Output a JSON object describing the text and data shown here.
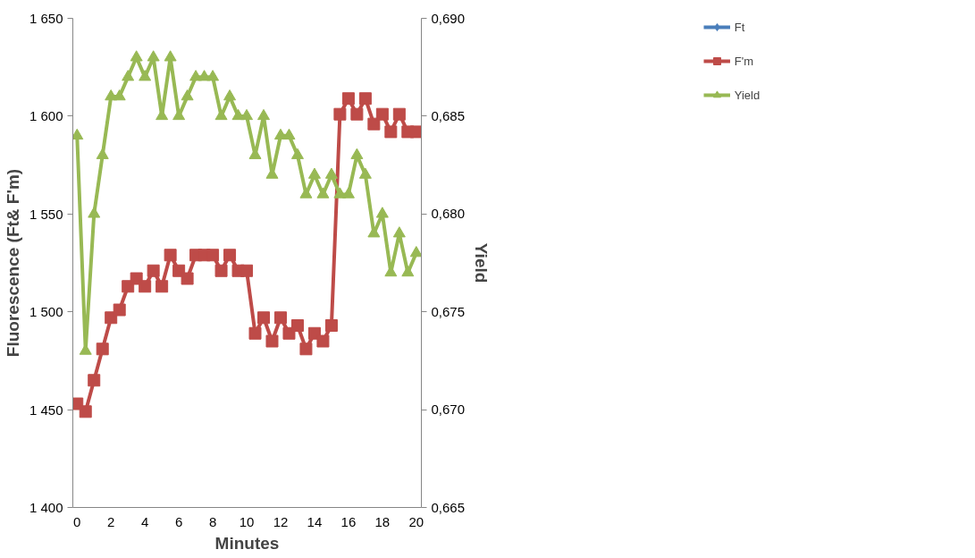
{
  "chart_data": {
    "type": "line",
    "xlabel": "Minutes",
    "ylabel": "Fluorescence (Ft& F'm)",
    "y2label": "Yield",
    "x": [
      0,
      0.5,
      1,
      1.5,
      2,
      2.5,
      3,
      3.5,
      4,
      4.5,
      5,
      5.5,
      6,
      6.5,
      7,
      7.5,
      8,
      8.5,
      9,
      9.5,
      10,
      10.5,
      11,
      11.5,
      12,
      12.5,
      13,
      13.5,
      14,
      14.5,
      15,
      15.5,
      16,
      16.5,
      17,
      17.5,
      18,
      18.5,
      19,
      19.5,
      20
    ],
    "series": [
      {
        "name": "Ft",
        "color": "#4a7ebb",
        "marker": "diamond",
        "values": [
          null,
          null,
          null,
          null,
          null,
          null,
          null,
          null,
          null,
          null,
          null,
          null,
          null,
          null,
          null,
          null,
          null,
          null,
          null,
          null,
          null,
          null,
          null,
          null,
          null,
          null,
          null,
          null,
          null,
          null,
          null,
          null,
          null,
          null,
          null,
          null,
          null,
          null,
          null,
          null,
          null
        ]
      },
      {
        "name": "F'm",
        "color": "#be4b48",
        "marker": "square",
        "values": [
          1453,
          1449,
          1465,
          1481,
          1497,
          1501,
          1513,
          1517,
          1513,
          1521,
          1513,
          1529,
          1521,
          1517,
          1529,
          1529,
          1529,
          1521,
          1529,
          1521,
          1521,
          1489,
          1497,
          1485,
          1497,
          1489,
          1493,
          1481,
          1489,
          1485,
          1493,
          1601,
          1609,
          1601,
          1609,
          1596,
          1601,
          1592,
          1601,
          1592,
          1592
        ]
      },
      {
        "name": "Yield",
        "color": "#98b954",
        "marker": "triangle",
        "axis": "y2",
        "values": [
          0.684,
          0.673,
          0.68,
          0.683,
          0.686,
          0.686,
          0.687,
          0.688,
          0.687,
          0.688,
          0.685,
          0.688,
          0.685,
          0.686,
          0.687,
          0.687,
          0.687,
          0.685,
          0.686,
          0.685,
          0.685,
          0.683,
          0.685,
          0.682,
          0.684,
          0.684,
          0.683,
          0.681,
          0.682,
          0.681,
          0.682,
          0.681,
          0.681,
          0.683,
          0.682,
          0.679,
          0.68,
          0.677,
          0.679,
          0.677,
          0.678
        ]
      }
    ],
    "xlim": [
      -0.25,
      20.3
    ],
    "xticks": [
      0,
      2,
      4,
      6,
      8,
      10,
      12,
      14,
      16,
      18,
      20
    ],
    "ylim": [
      1400,
      1650
    ],
    "yticks": [
      {
        "value": 1400,
        "label": "1 400"
      },
      {
        "value": 1450,
        "label": "1 450"
      },
      {
        "value": 1500,
        "label": "1 500"
      },
      {
        "value": 1550,
        "label": "1 550"
      },
      {
        "value": 1600,
        "label": "1 600"
      },
      {
        "value": 1650,
        "label": "1 650"
      }
    ],
    "y2lim": [
      0.665,
      0.69
    ],
    "y2ticks": [
      {
        "value": 0.665,
        "label": "0,665"
      },
      {
        "value": 0.67,
        "label": "0,670"
      },
      {
        "value": 0.675,
        "label": "0,675"
      },
      {
        "value": 0.68,
        "label": "0,680"
      },
      {
        "value": 0.685,
        "label": "0,685"
      },
      {
        "value": 0.69,
        "label": "0,690"
      }
    ],
    "grid": false,
    "legend": "top right",
    "line_style": "solid"
  }
}
